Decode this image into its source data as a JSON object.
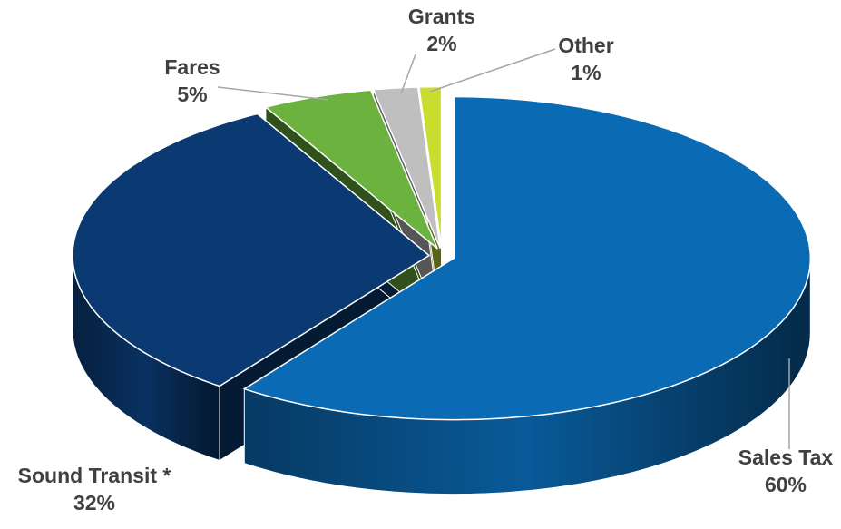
{
  "chart_data": {
    "type": "pie3d",
    "categories": [
      "Sales Tax",
      "Sound Transit *",
      "Fares",
      "Grants",
      "Other"
    ],
    "values": [
      60,
      32,
      5,
      2,
      1
    ],
    "value_labels": [
      "60%",
      "32%",
      "5%",
      "2%",
      "1%"
    ],
    "colors": [
      "#0a6ab4",
      "#0b3a72",
      "#6bb33e",
      "#bfbfbf",
      "#c9dd2e"
    ]
  }
}
